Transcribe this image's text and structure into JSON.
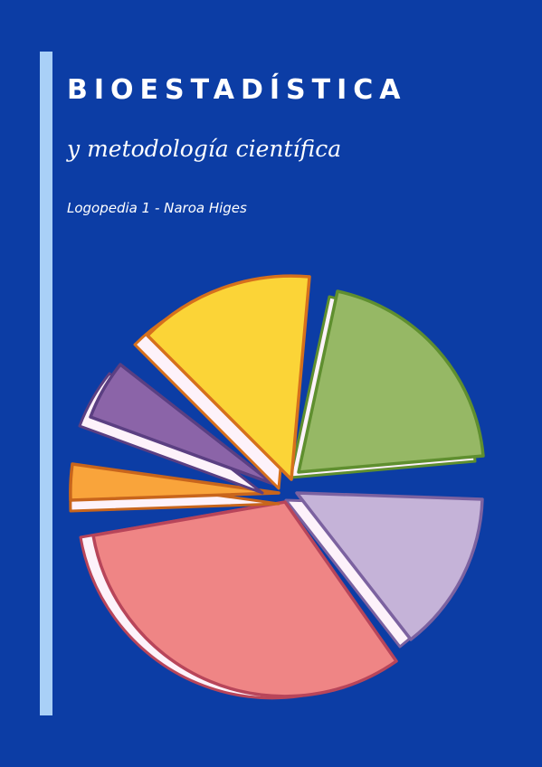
{
  "header": {
    "title": "BIOESTADÍSTICA",
    "subtitle": "y metodología científica",
    "author": "Logopedia 1 - Naroa Higes"
  }
}
